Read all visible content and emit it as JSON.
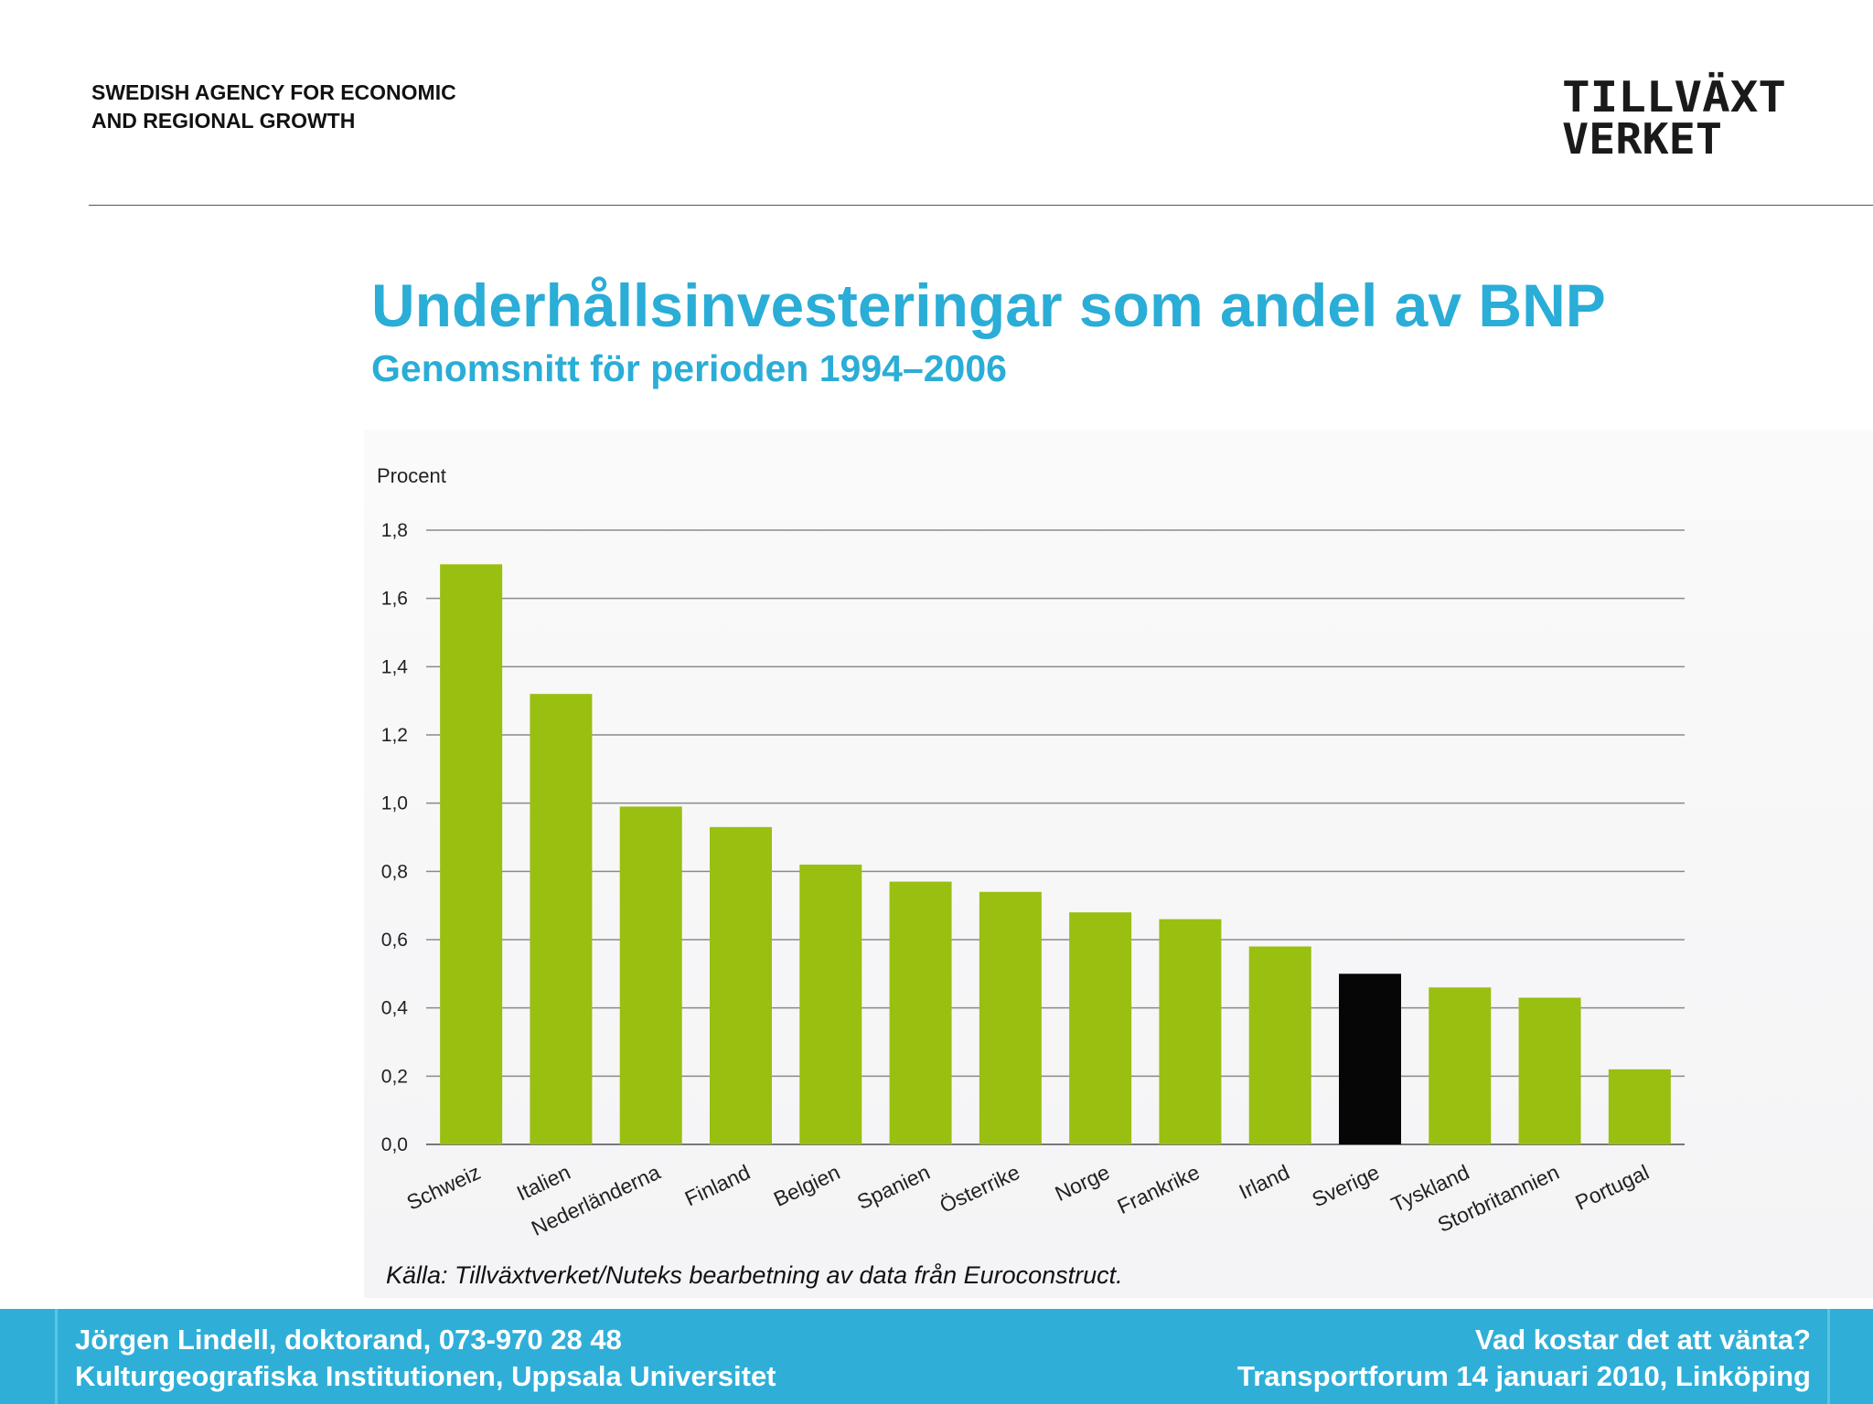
{
  "header": {
    "agency_line1": "SWEDISH AGENCY FOR ECONOMIC",
    "agency_line2": "AND REGIONAL GROWTH",
    "logo_line1": "TILLVÄXT",
    "logo_line2": "VERKET"
  },
  "slide": {
    "title": "Underhållsinvesteringar som andel av BNP",
    "subtitle": "Genomsnitt för perioden 1994–2006",
    "source": "Källa: Tillväxtverket/Nuteks bearbetning av data från Euroconstruct."
  },
  "chart_data": {
    "type": "bar",
    "ylabel": "Procent",
    "ylim": [
      0,
      1.8
    ],
    "yticks": [
      "0,0",
      "0,2",
      "0,4",
      "0,6",
      "0,8",
      "1,0",
      "1,2",
      "1,4",
      "1,6",
      "1,8"
    ],
    "grid": true,
    "categories": [
      "Schweiz",
      "Italien",
      "Nederländerna",
      "Finland",
      "Belgien",
      "Spanien",
      "Österrike",
      "Norge",
      "Frankrike",
      "Irland",
      "Sverige",
      "Tyskland",
      "Storbritannien",
      "Portugal"
    ],
    "values": [
      1.7,
      1.32,
      0.99,
      0.93,
      0.82,
      0.77,
      0.74,
      0.68,
      0.66,
      0.58,
      0.5,
      0.46,
      0.43,
      0.22
    ],
    "colors": [
      "#99bf11",
      "#99bf11",
      "#99bf11",
      "#99bf11",
      "#99bf11",
      "#99bf11",
      "#99bf11",
      "#99bf11",
      "#99bf11",
      "#99bf11",
      "#060606",
      "#99bf11",
      "#99bf11",
      "#99bf11"
    ],
    "highlight_color": "#060606",
    "bar_color": "#99bf11"
  },
  "footer": {
    "left_line1": "Jörgen Lindell, doktorand,  073-970 28 48",
    "left_line2": "Kulturgeografiska Institutionen, Uppsala Universitet",
    "right_line1": "Vad kostar det att vänta?",
    "right_line2": "Transportforum 14 januari 2010, Linköping"
  }
}
